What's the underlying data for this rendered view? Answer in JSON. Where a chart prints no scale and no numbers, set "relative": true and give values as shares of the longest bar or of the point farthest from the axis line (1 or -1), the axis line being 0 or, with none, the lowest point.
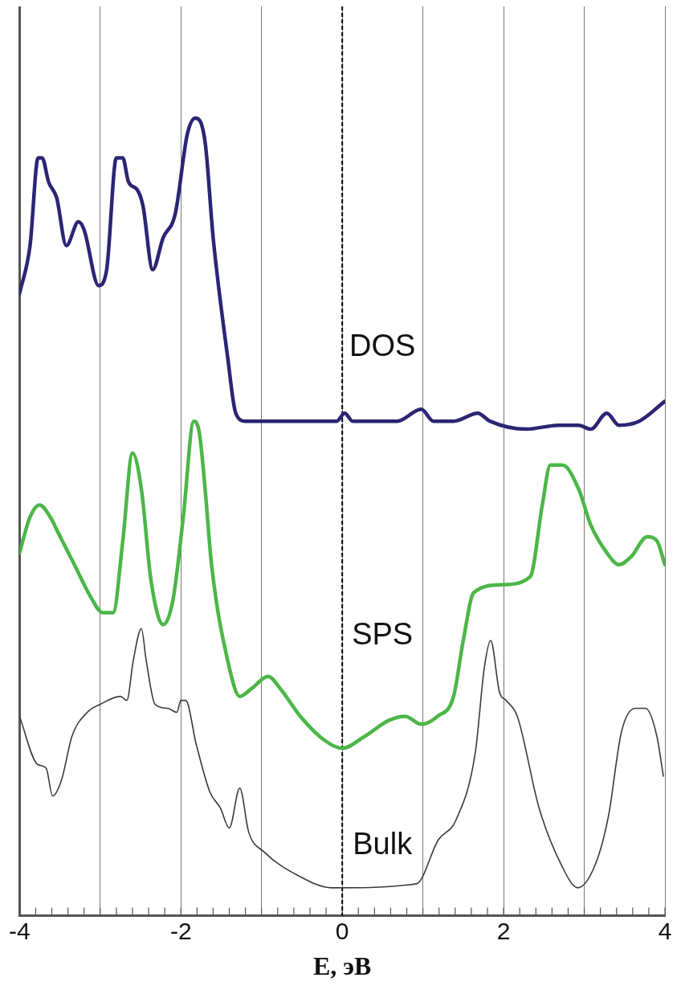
{
  "chart_data": {
    "type": "line",
    "xlabel": "E, эВ",
    "relative": true,
    "xlim": [
      -4,
      4
    ],
    "xticks": [
      -4,
      {
        "value": -3,
        "label": null
      },
      -2,
      {
        "value": -1,
        "label": null
      },
      0,
      {
        "value": 1,
        "label": null
      },
      2,
      {
        "value": 3,
        "label": null
      },
      4
    ],
    "grid": "x",
    "marker": "none",
    "line_style": "solid",
    "ref_lines": [
      {
        "axis": "x",
        "value": 0,
        "line_style": "dashed",
        "color": "#000000"
      }
    ],
    "series": [
      {
        "name": "DOS",
        "color": "#2b2574",
        "x": [
          -4,
          -3.87,
          -3.77,
          -3.72,
          -3.64,
          -3.54,
          -3.42,
          -3.27,
          -3.2,
          -3.02,
          -2.92,
          -2.8,
          -2.72,
          -2.65,
          -2.54,
          -2.47,
          -2.35,
          -2.22,
          -2.07,
          -1.92,
          -1.82,
          -1.7,
          -1.6,
          -1.42,
          -1.32,
          -1.2,
          -1.02,
          -0.82,
          -0.62,
          -0.32,
          -0.07,
          0.03,
          0.13,
          0.38,
          0.68,
          0.98,
          1.13,
          1.38,
          1.68,
          1.83,
          2.28,
          2.68,
          2.93,
          3.08,
          3.28,
          3.43,
          3.68,
          4
        ],
        "values": [
          0.78,
          0.84,
          0.95,
          0.95,
          0.92,
          0.9,
          0.84,
          0.87,
          0.86,
          0.79,
          0.81,
          0.95,
          0.95,
          0.92,
          0.91,
          0.89,
          0.81,
          0.85,
          0.88,
          0.98,
          1,
          0.97,
          0.85,
          0.7,
          0.63,
          0.62,
          0.62,
          0.62,
          0.62,
          0.62,
          0.62,
          0.63,
          0.62,
          0.62,
          0.62,
          0.635,
          0.62,
          0.62,
          0.63,
          0.62,
          0.61,
          0.615,
          0.615,
          0.61,
          0.63,
          0.615,
          0.62,
          0.645
        ]
      },
      {
        "name": "SPS",
        "color": "#4cb648",
        "x": [
          -4,
          -3.87,
          -3.75,
          -3.62,
          -3.52,
          -3.32,
          -3.12,
          -2.97,
          -2.84,
          -2.72,
          -2.6,
          -2.49,
          -2.37,
          -2.22,
          -2.1,
          -1.97,
          -1.84,
          -1.77,
          -1.7,
          -1.62,
          -1.42,
          -1.27,
          -1.12,
          -0.92,
          -0.77,
          -0.52,
          -0.22,
          0,
          0.28,
          0.58,
          0.78,
          0.98,
          1.18,
          1.38,
          1.5,
          1.63,
          1.98,
          2.33,
          2.48,
          2.58,
          2.73,
          2.93,
          3.08,
          3.28,
          3.43,
          3.58,
          3.78,
          3.9,
          4
        ],
        "values": [
          0.455,
          0.5,
          0.515,
          0.5,
          0.48,
          0.44,
          0.4,
          0.38,
          0.38,
          0.47,
          0.58,
          0.535,
          0.42,
          0.365,
          0.395,
          0.5,
          0.62,
          0.605,
          0.535,
          0.44,
          0.32,
          0.275,
          0.285,
          0.3,
          0.285,
          0.25,
          0.22,
          0.21,
          0.225,
          0.245,
          0.25,
          0.24,
          0.25,
          0.275,
          0.345,
          0.405,
          0.415,
          0.425,
          0.515,
          0.565,
          0.565,
          0.535,
          0.49,
          0.455,
          0.44,
          0.45,
          0.475,
          0.47,
          0.44
        ]
      },
      {
        "name": "Bulk",
        "color": "#3a3a3a",
        "x": [
          -4,
          -3.78,
          -3.67,
          -3.59,
          -3.48,
          -3.35,
          -3.16,
          -3,
          -2.75,
          -2.67,
          -2.59,
          -2.49,
          -2.43,
          -2.32,
          -2.16,
          -2.05,
          -2,
          -1.94,
          -1.81,
          -1.64,
          -1.51,
          -1.4,
          -1.27,
          -1.16,
          -0.97,
          -0.54,
          -0.13,
          0.92,
          1.19,
          1.41,
          1.65,
          1.76,
          1.84,
          1.95,
          2.03,
          2.17,
          2.44,
          2.71,
          2.92,
          3.14,
          3.3,
          3.46,
          3.63,
          3.76,
          3.9,
          3.98
        ],
        "values": [
          0.25,
          0.19,
          0.185,
          0.15,
          0.17,
          0.225,
          0.255,
          0.265,
          0.275,
          0.27,
          0.32,
          0.36,
          0.32,
          0.265,
          0.26,
          0.255,
          0.27,
          0.27,
          0.215,
          0.155,
          0.135,
          0.11,
          0.16,
          0.105,
          0.08,
          0.05,
          0.035,
          0.04,
          0.095,
          0.12,
          0.205,
          0.31,
          0.345,
          0.28,
          0.27,
          0.25,
          0.135,
          0.065,
          0.035,
          0.065,
          0.125,
          0.23,
          0.26,
          0.26,
          0.225,
          0.175
        ]
      }
    ]
  }
}
